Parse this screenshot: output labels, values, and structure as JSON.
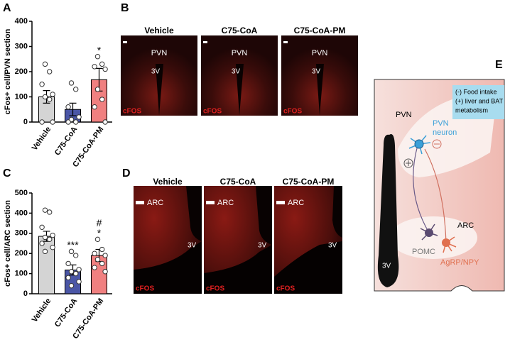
{
  "chart_data": [
    {
      "type": "bar",
      "ylabel": "cFos+ cell/PVN section",
      "categories": [
        "Vehicle",
        "C75-CoA",
        "C75-CoA-PM"
      ],
      "values": [
        100,
        50,
        168
      ],
      "errors": [
        25,
        25,
        45
      ],
      "colors": [
        "#d4d4d4",
        "#4a56a6",
        "#f08080"
      ],
      "points": [
        [
          230,
          200,
          150,
          110,
          100,
          90,
          0,
          0
        ],
        [
          155,
          130,
          60,
          20,
          10,
          0,
          0
        ],
        [
          260,
          230,
          220,
          210,
          130,
          90,
          60,
          0
        ]
      ],
      "ylim": [
        0,
        400
      ],
      "yticks": [
        0,
        100,
        200,
        300,
        400
      ],
      "annotations": [
        {
          "category": "C75-CoA-PM",
          "text": "*"
        }
      ]
    },
    {
      "type": "bar",
      "ylabel": "cFos+ cell/ARC section",
      "categories": [
        "Vehicle",
        "C75-CoA",
        "C75-CoA-PM"
      ],
      "values": [
        285,
        118,
        190
      ],
      "errors": [
        25,
        25,
        30
      ],
      "colors": [
        "#d4d4d4",
        "#4a56a6",
        "#f08080"
      ],
      "points": [
        [
          415,
          405,
          330,
          290,
          280,
          270,
          250,
          230,
          210
        ],
        [
          210,
          190,
          150,
          120,
          110,
          100,
          80,
          60,
          40
        ],
        [
          270,
          220,
          200,
          190,
          170,
          150,
          130,
          110
        ]
      ],
      "ylim": [
        0,
        500
      ],
      "yticks": [
        0,
        100,
        200,
        300,
        400,
        500
      ],
      "annotations": [
        {
          "category": "C75-CoA",
          "text": "***"
        },
        {
          "category": "C75-CoA-PM",
          "text": "*"
        },
        {
          "category": "C75-CoA-PM",
          "text": "#"
        }
      ]
    }
  ],
  "panel_labels": [
    "A",
    "B",
    "C",
    "D",
    "E"
  ],
  "panel_b": {
    "titles": [
      "Vehicle",
      "C75-CoA",
      "C75-CoA-PM"
    ],
    "region": "PVN",
    "ventricle": "3V",
    "stain": "cFOS"
  },
  "panel_d": {
    "titles": [
      "Vehicle",
      "C75-CoA",
      "C75-CoA-PM"
    ],
    "region": "ARC",
    "ventricle": "3V",
    "stain": "cFOS"
  },
  "panel_e": {
    "pvn": "PVN",
    "neuron_lines": [
      "PVN",
      "neuron"
    ],
    "box_lines": [
      "(-) Food intake",
      "(+) liver and BAT",
      "metabolism"
    ],
    "arc": "ARC",
    "pomc": "POMC",
    "agrp": "AgRP/NPY",
    "ventricle": "3V"
  }
}
